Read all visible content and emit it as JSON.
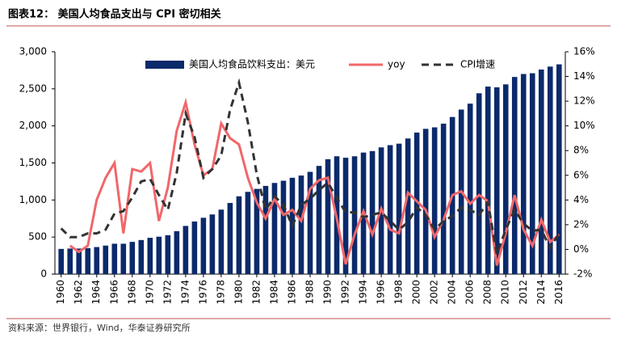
{
  "chart_data": {
    "type": "bar-line",
    "title": "图表12：  美国人均食品支出与 CPI 密切相关",
    "source": "资料来源：世界银行，Wind，华泰证券研究所",
    "x": [
      1960,
      1961,
      1962,
      1963,
      1964,
      1965,
      1966,
      1967,
      1968,
      1969,
      1970,
      1971,
      1972,
      1973,
      1974,
      1975,
      1976,
      1977,
      1978,
      1979,
      1980,
      1981,
      1982,
      1983,
      1984,
      1985,
      1986,
      1987,
      1988,
      1989,
      1990,
      1991,
      1992,
      1993,
      1994,
      1995,
      1996,
      1997,
      1998,
      1999,
      2000,
      2001,
      2002,
      2003,
      2004,
      2005,
      2006,
      2007,
      2008,
      2009,
      2010,
      2011,
      2012,
      2013,
      2014,
      2015,
      2016
    ],
    "xlim": [
      1959.3,
      2016.7
    ],
    "xticks": [
      1960,
      1962,
      1964,
      1966,
      1968,
      1970,
      1972,
      1974,
      1976,
      1978,
      1980,
      1982,
      1984,
      1986,
      1988,
      1990,
      1992,
      1994,
      1996,
      1998,
      2000,
      2002,
      2004,
      2006,
      2008,
      2010,
      2012,
      2014,
      2016
    ],
    "ylim": [
      0,
      3000
    ],
    "yticks": [
      {
        "value": 0,
        "label": "0"
      },
      {
        "value": 500,
        "label": "500"
      },
      {
        "value": 1000,
        "label": "1,000"
      },
      {
        "value": 1500,
        "label": "1,500"
      },
      {
        "value": 2000,
        "label": "2,000"
      },
      {
        "value": 2500,
        "label": "2,500"
      },
      {
        "value": 3000,
        "label": "3,000"
      }
    ],
    "y2lim": [
      -2,
      16
    ],
    "y2ticks": [
      {
        "value": -2,
        "label": "-2%"
      },
      {
        "value": 0,
        "label": "0%"
      },
      {
        "value": 2,
        "label": "2%"
      },
      {
        "value": 4,
        "label": "4%"
      },
      {
        "value": 6,
        "label": "6%"
      },
      {
        "value": 8,
        "label": "8%"
      },
      {
        "value": 10,
        "label": "10%"
      },
      {
        "value": 12,
        "label": "12%"
      },
      {
        "value": 14,
        "label": "14%"
      },
      {
        "value": 16,
        "label": "16%"
      }
    ],
    "series": [
      {
        "name": "美国人均食品饮料支出：美元",
        "type": "bar",
        "color": "#0b2a6b",
        "values": [
          340,
          345,
          345,
          350,
          365,
          385,
          410,
          410,
          435,
          460,
          490,
          505,
          525,
          580,
          650,
          710,
          760,
          805,
          870,
          960,
          1050,
          1110,
          1150,
          1190,
          1230,
          1260,
          1300,
          1330,
          1380,
          1460,
          1550,
          1590,
          1570,
          1590,
          1640,
          1660,
          1710,
          1740,
          1760,
          1830,
          1910,
          1960,
          1980,
          2030,
          2120,
          2220,
          2300,
          2440,
          2530,
          2520,
          2560,
          2660,
          2700,
          2710,
          2760,
          2800,
          2830
        ]
      },
      {
        "name": "yoy",
        "type": "line",
        "axis": "y2",
        "color": "#f0676a",
        "dash": false,
        "values": [
          null,
          0.3,
          -0.2,
          0.3,
          4,
          5.8,
          7,
          1.3,
          6.5,
          6.3,
          7,
          2.3,
          5,
          9.6,
          11.9,
          8.5,
          6,
          6.5,
          10.2,
          9,
          8.5,
          5.8,
          3.8,
          2.5,
          4.1,
          2.8,
          3.2,
          2.3,
          4.9,
          5.6,
          5.8,
          2.5,
          -1.2,
          1.2,
          3.1,
          1.2,
          3.3,
          1.6,
          1.3,
          4.6,
          3.9,
          3.2,
          1,
          2.4,
          4.4,
          4.7,
          3.7,
          4.4,
          3.9,
          -1.3,
          1.3,
          4.4,
          1.6,
          0.3,
          2.4,
          0.6,
          1.2
        ]
      },
      {
        "name": "CPI增速",
        "type": "line",
        "axis": "y2",
        "color": "#333333",
        "dash": true,
        "values": [
          1.7,
          1,
          1,
          1.3,
          1.3,
          1.6,
          2.9,
          3.1,
          4.2,
          5.5,
          5.7,
          4.4,
          3.2,
          6.2,
          11,
          9.1,
          5.8,
          6.5,
          7.6,
          11.3,
          13.5,
          10.3,
          6.1,
          3.2,
          4.3,
          3.6,
          1.9,
          3.6,
          4.1,
          4.8,
          5.4,
          4.2,
          3,
          3,
          2.6,
          2.8,
          3,
          2.3,
          1.6,
          2.2,
          3.4,
          2.8,
          1.6,
          2.3,
          2.7,
          3.4,
          3.2,
          2.8,
          3.8,
          -0.4,
          1.6,
          3.2,
          2.1,
          1.5,
          1.6,
          0.1,
          1.3
        ]
      }
    ]
  }
}
